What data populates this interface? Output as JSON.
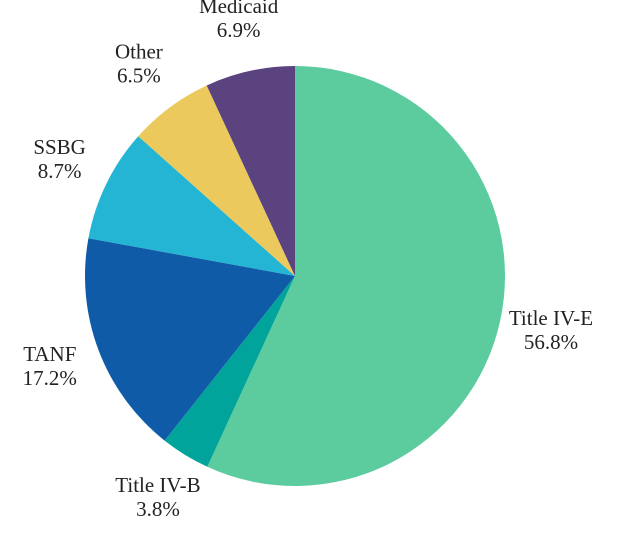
{
  "chart_data": {
    "type": "pie",
    "categories": [
      "Title IV-E",
      "Title IV-B",
      "TANF",
      "SSBG",
      "Other",
      "Medicaid"
    ],
    "values": [
      56.8,
      3.8,
      17.2,
      8.7,
      6.5,
      6.9
    ],
    "value_labels": [
      "56.8%",
      "3.8%",
      "17.2%",
      "8.7%",
      "6.5%",
      "6.9%"
    ],
    "colors": [
      "#5ccc9e",
      "#00a49a",
      "#0f5ba8",
      "#23b5d3",
      "#ecc95c",
      "#5a437e"
    ]
  }
}
